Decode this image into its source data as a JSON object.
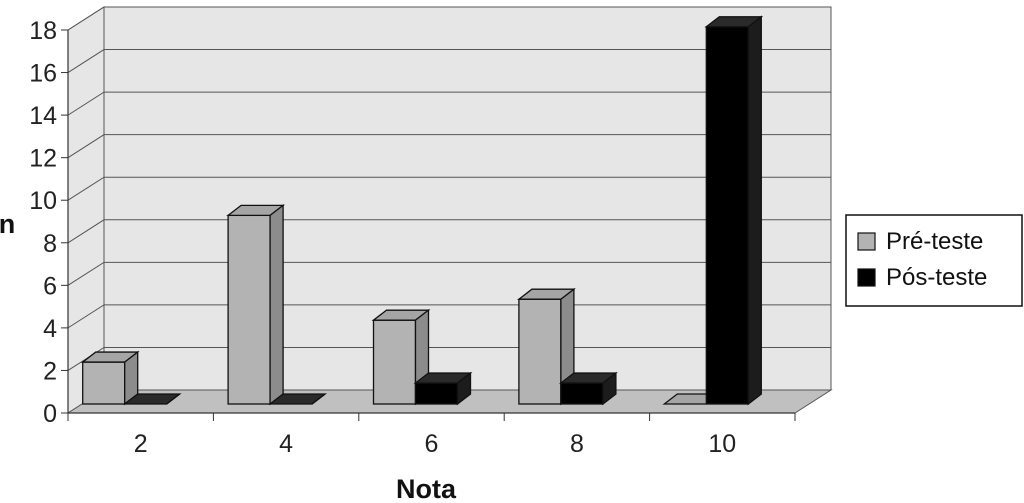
{
  "chart_data": {
    "type": "bar",
    "style": "3d-clustered-column",
    "categories": [
      "2",
      "4",
      "6",
      "8",
      "10"
    ],
    "series": [
      {
        "name": "Pré-teste",
        "values": [
          2,
          9,
          4,
          5,
          0
        ],
        "color": "#b3b3b3"
      },
      {
        "name": "Pós-teste",
        "values": [
          0,
          0,
          1,
          1,
          18
        ],
        "color": "#000000"
      }
    ],
    "yticks": [
      "0",
      "2",
      "4",
      "6",
      "8",
      "10",
      "12",
      "14",
      "16",
      "18"
    ],
    "ylim": [
      0,
      18
    ],
    "xlabel": "Nota",
    "ylabel": "n",
    "grid": true,
    "legend": "right",
    "wall_color": "#e6e6e6",
    "floor_color": "#c0c0c0"
  }
}
